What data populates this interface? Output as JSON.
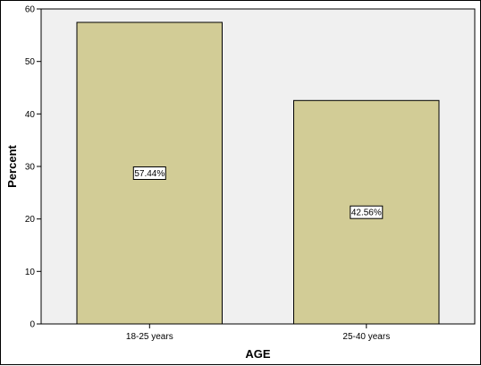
{
  "chart_data": {
    "type": "bar",
    "categories": [
      "18-25 years",
      "25-40 years"
    ],
    "values": [
      57.44,
      42.56
    ],
    "data_labels": [
      "57.44%",
      "42.56%"
    ],
    "title": "",
    "xlabel": "AGE",
    "ylabel": "Percent",
    "ylim": [
      0,
      60
    ],
    "yticks": [
      0,
      10,
      20,
      30,
      40,
      50,
      60
    ],
    "grid": false,
    "legend": "none",
    "colors": {
      "bar_fill": "#D2CC96",
      "bar_stroke": "#000000",
      "plot_background": "#F0F0F0"
    }
  }
}
